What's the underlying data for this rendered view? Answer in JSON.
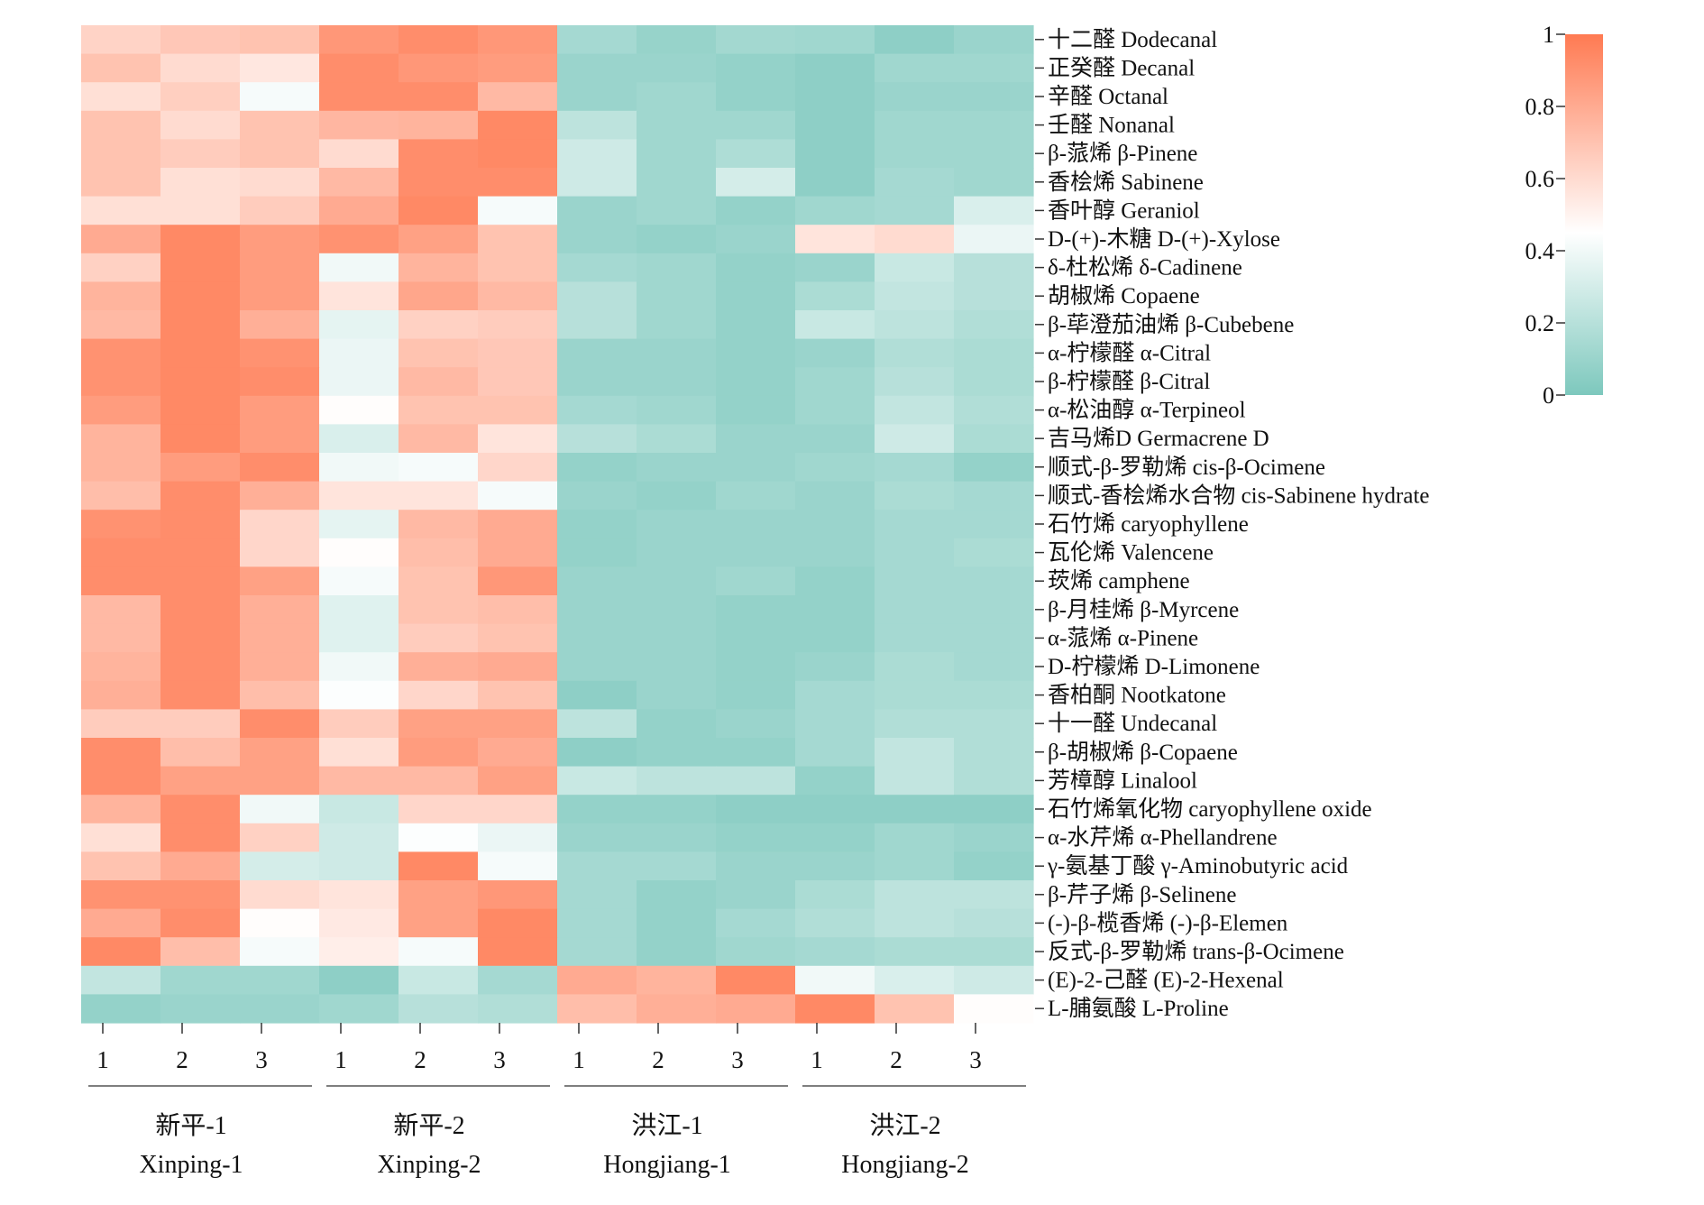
{
  "chart_data": {
    "type": "heatmap",
    "title": "",
    "color_scale": {
      "low": "#7DC8BD",
      "mid": "#FFFFFF",
      "high": "#FF7A52",
      "min": 0,
      "max": 1,
      "ticks": [
        {
          "value": 1,
          "label": "1"
        },
        {
          "value": 0.8,
          "label": "0.8"
        },
        {
          "value": 0.6,
          "label": "0.6"
        },
        {
          "value": 0.4,
          "label": "0.4"
        },
        {
          "value": 0.2,
          "label": "0.2"
        },
        {
          "value": 0,
          "label": "0"
        }
      ]
    },
    "columns": [
      "1",
      "2",
      "3",
      "1",
      "2",
      "3",
      "1",
      "2",
      "3",
      "1",
      "2",
      "3"
    ],
    "groups": [
      {
        "zh": "新平-1",
        "en": "Xinping-1",
        "span": 3
      },
      {
        "zh": "新平-2",
        "en": "Xinping-2",
        "span": 3
      },
      {
        "zh": "洪江-1",
        "en": "Hongjiang-1",
        "span": 3
      },
      {
        "zh": "洪江-2",
        "en": "Hongjiang-2",
        "span": 3
      }
    ],
    "rows": [
      {
        "label": "十二醛 Dodecanal",
        "values": [
          0.63,
          0.68,
          0.7,
          0.88,
          0.92,
          0.88,
          0.14,
          0.09,
          0.13,
          0.12,
          0.06,
          0.1
        ]
      },
      {
        "label": "正癸醛 Decanal",
        "values": [
          0.7,
          0.6,
          0.55,
          0.92,
          0.88,
          0.86,
          0.1,
          0.1,
          0.08,
          0.06,
          0.12,
          0.12
        ]
      },
      {
        "label": "辛醛 Octanal",
        "values": [
          0.58,
          0.65,
          0.42,
          0.92,
          0.92,
          0.74,
          0.1,
          0.12,
          0.08,
          0.06,
          0.1,
          0.1
        ]
      },
      {
        "label": "壬醛 Nonanal",
        "values": [
          0.7,
          0.6,
          0.7,
          0.75,
          0.76,
          0.94,
          0.22,
          0.12,
          0.12,
          0.06,
          0.12,
          0.12
        ]
      },
      {
        "label": "β-蒎烯 β-Pinene",
        "values": [
          0.7,
          0.66,
          0.7,
          0.6,
          0.92,
          0.94,
          0.28,
          0.12,
          0.17,
          0.06,
          0.12,
          0.12
        ]
      },
      {
        "label": "香桧烯 Sabinene",
        "values": [
          0.7,
          0.58,
          0.6,
          0.74,
          0.92,
          0.92,
          0.28,
          0.12,
          0.3,
          0.06,
          0.14,
          0.12
        ]
      },
      {
        "label": "香叶醇 Geraniol",
        "values": [
          0.58,
          0.58,
          0.66,
          0.8,
          0.94,
          0.42,
          0.1,
          0.12,
          0.08,
          0.12,
          0.14,
          0.32
        ]
      },
      {
        "label": "D-(+)-木糖 D-(+)-Xylose",
        "values": [
          0.8,
          0.94,
          0.86,
          0.9,
          0.84,
          0.7,
          0.1,
          0.08,
          0.1,
          0.56,
          0.6,
          0.38
        ]
      },
      {
        "label": "δ-杜松烯 δ-Cadinene",
        "values": [
          0.64,
          0.94,
          0.86,
          0.4,
          0.76,
          0.7,
          0.14,
          0.12,
          0.08,
          0.1,
          0.26,
          0.2
        ]
      },
      {
        "label": "胡椒烯 Copaene",
        "values": [
          0.76,
          0.94,
          0.86,
          0.56,
          0.82,
          0.74,
          0.2,
          0.12,
          0.08,
          0.16,
          0.24,
          0.2
        ]
      },
      {
        "label": "β-荜澄茄油烯 β-Cubebene",
        "values": [
          0.74,
          0.94,
          0.78,
          0.36,
          0.64,
          0.66,
          0.2,
          0.12,
          0.08,
          0.26,
          0.22,
          0.18
        ]
      },
      {
        "label": "α-柠檬醛 α-Citral",
        "values": [
          0.9,
          0.94,
          0.9,
          0.38,
          0.7,
          0.68,
          0.1,
          0.1,
          0.08,
          0.1,
          0.18,
          0.16
        ]
      },
      {
        "label": "β-柠檬醛 β-Citral",
        "values": [
          0.9,
          0.94,
          0.92,
          0.38,
          0.74,
          0.68,
          0.1,
          0.1,
          0.08,
          0.12,
          0.2,
          0.16
        ]
      },
      {
        "label": "α-松油醇 α-Terpineol",
        "values": [
          0.86,
          0.94,
          0.86,
          0.46,
          0.7,
          0.7,
          0.14,
          0.12,
          0.08,
          0.12,
          0.24,
          0.18
        ]
      },
      {
        "label": "吉马烯D Germacrene D",
        "values": [
          0.76,
          0.94,
          0.86,
          0.32,
          0.74,
          0.56,
          0.2,
          0.16,
          0.1,
          0.1,
          0.28,
          0.16
        ]
      },
      {
        "label": "顺式-β-罗勒烯 cis-β-Ocimene",
        "values": [
          0.76,
          0.86,
          0.92,
          0.4,
          0.42,
          0.62,
          0.08,
          0.1,
          0.1,
          0.12,
          0.14,
          0.08
        ]
      },
      {
        "label": "顺式-香桧烯水合物 cis-Sabinene hydrate",
        "values": [
          0.72,
          0.92,
          0.78,
          0.56,
          0.56,
          0.42,
          0.1,
          0.08,
          0.12,
          0.1,
          0.16,
          0.14
        ]
      },
      {
        "label": "石竹烯 caryophyllene",
        "values": [
          0.9,
          0.92,
          0.62,
          0.36,
          0.74,
          0.8,
          0.08,
          0.1,
          0.1,
          0.1,
          0.14,
          0.14
        ]
      },
      {
        "label": "瓦伦烯 Valencene",
        "values": [
          0.92,
          0.92,
          0.62,
          0.46,
          0.72,
          0.8,
          0.08,
          0.1,
          0.1,
          0.1,
          0.14,
          0.16
        ]
      },
      {
        "label": "莰烯 camphene",
        "values": [
          0.92,
          0.92,
          0.84,
          0.42,
          0.7,
          0.88,
          0.1,
          0.1,
          0.12,
          0.08,
          0.14,
          0.14
        ]
      },
      {
        "label": "β-月桂烯 β-Myrcene",
        "values": [
          0.74,
          0.92,
          0.78,
          0.34,
          0.7,
          0.72,
          0.1,
          0.1,
          0.08,
          0.08,
          0.14,
          0.14
        ]
      },
      {
        "label": "α-蒎烯 α-Pinene",
        "values": [
          0.74,
          0.92,
          0.78,
          0.34,
          0.66,
          0.7,
          0.1,
          0.1,
          0.08,
          0.08,
          0.14,
          0.14
        ]
      },
      {
        "label": "D-柠檬烯 D-Limonene",
        "values": [
          0.76,
          0.92,
          0.78,
          0.4,
          0.78,
          0.8,
          0.1,
          0.1,
          0.08,
          0.1,
          0.16,
          0.14
        ]
      },
      {
        "label": "香柏酮 Nootkatone",
        "values": [
          0.78,
          0.92,
          0.72,
          0.44,
          0.62,
          0.7,
          0.06,
          0.1,
          0.08,
          0.14,
          0.16,
          0.16
        ]
      },
      {
        "label": "十一醛 Undecanal",
        "values": [
          0.66,
          0.66,
          0.92,
          0.66,
          0.84,
          0.84,
          0.22,
          0.08,
          0.1,
          0.14,
          0.18,
          0.18
        ]
      },
      {
        "label": "β-胡椒烯 β-Copaene",
        "values": [
          0.92,
          0.72,
          0.84,
          0.58,
          0.86,
          0.8,
          0.06,
          0.08,
          0.08,
          0.14,
          0.24,
          0.18
        ]
      },
      {
        "label": "芳樟醇 Linalool",
        "values": [
          0.92,
          0.84,
          0.84,
          0.74,
          0.74,
          0.84,
          0.26,
          0.22,
          0.22,
          0.08,
          0.24,
          0.18
        ]
      },
      {
        "label": "石竹烯氧化物 caryophyllene oxide",
        "values": [
          0.76,
          0.92,
          0.4,
          0.26,
          0.62,
          0.62,
          0.08,
          0.08,
          0.06,
          0.06,
          0.06,
          0.06
        ]
      },
      {
        "label": "α-水芹烯 α-Phellandrene",
        "values": [
          0.58,
          0.92,
          0.64,
          0.28,
          0.44,
          0.38,
          0.1,
          0.1,
          0.08,
          0.08,
          0.12,
          0.1
        ]
      },
      {
        "label": "γ-氨基丁酸 γ-Aminobutyric acid",
        "values": [
          0.7,
          0.8,
          0.3,
          0.28,
          0.94,
          0.42,
          0.14,
          0.14,
          0.1,
          0.1,
          0.12,
          0.08
        ]
      },
      {
        "label": "β-芹子烯 β-Selinene",
        "values": [
          0.9,
          0.9,
          0.6,
          0.56,
          0.84,
          0.88,
          0.14,
          0.08,
          0.1,
          0.16,
          0.22,
          0.22
        ]
      },
      {
        "label": "(-)-β-榄香烯 (-)-β-Elemen",
        "values": [
          0.8,
          0.92,
          0.46,
          0.54,
          0.84,
          0.94,
          0.14,
          0.08,
          0.14,
          0.18,
          0.22,
          0.2
        ]
      },
      {
        "label": "反式-β-罗勒烯 trans-β-Ocimene",
        "values": [
          0.94,
          0.72,
          0.42,
          0.52,
          0.42,
          0.94,
          0.14,
          0.08,
          0.12,
          0.14,
          0.16,
          0.16
        ]
      },
      {
        "label": "(E)-2-己醛 (E)-2-Hexenal",
        "values": [
          0.24,
          0.12,
          0.12,
          0.06,
          0.26,
          0.14,
          0.8,
          0.76,
          0.94,
          0.4,
          0.32,
          0.28
        ]
      },
      {
        "label": "L-脯氨酸 L-Proline",
        "values": [
          0.08,
          0.1,
          0.1,
          0.12,
          0.2,
          0.18,
          0.72,
          0.78,
          0.8,
          0.94,
          0.7,
          0.46
        ]
      }
    ]
  }
}
